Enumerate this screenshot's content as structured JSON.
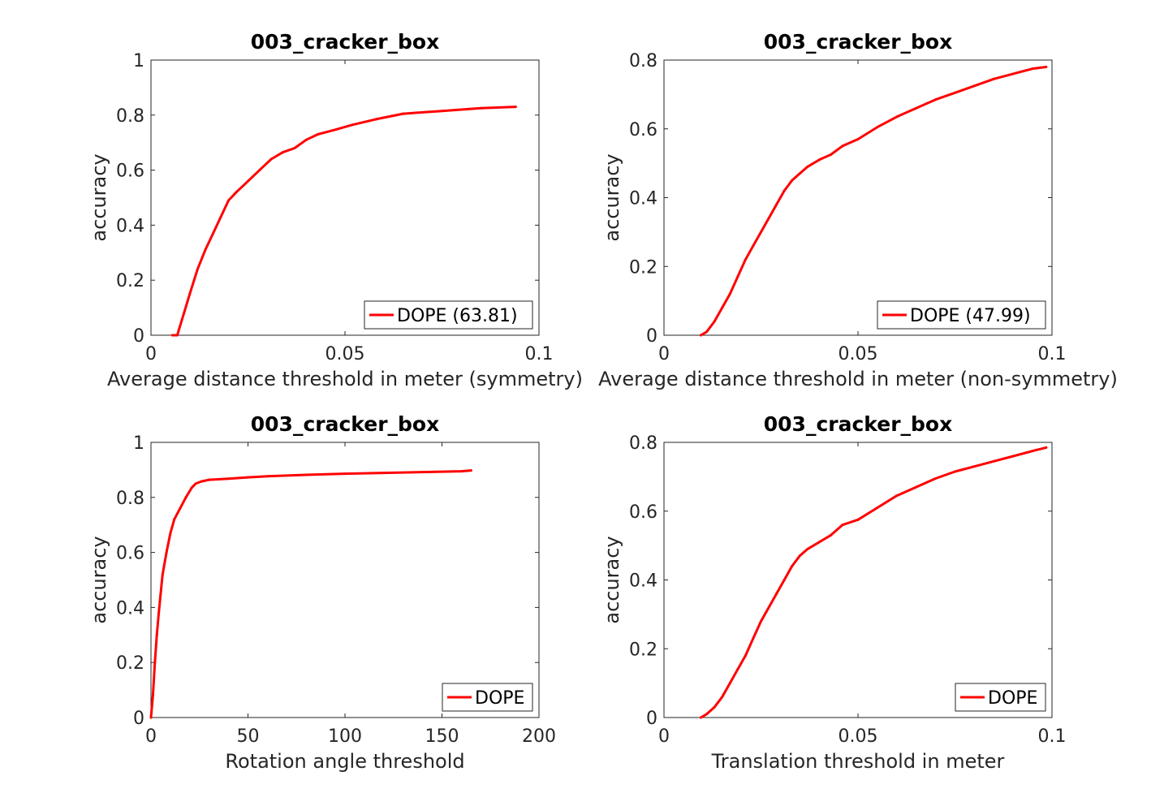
{
  "chart_data": [
    {
      "type": "line",
      "title": "003_cracker_box",
      "xlabel": "Average distance threshold in meter (symmetry)",
      "ylabel": "accuracy",
      "xlim": [
        0,
        0.1
      ],
      "ylim": [
        0,
        1
      ],
      "xticks": [
        "0",
        "0.05",
        "0.1"
      ],
      "yticks": [
        "0",
        "0.2",
        "0.4",
        "0.6",
        "0.8",
        "1"
      ],
      "legend_position": "bottom-right",
      "grid": false,
      "series": [
        {
          "name": "DOPE (63.81)",
          "color": "#ff0000",
          "x": [
            0.0055,
            0.0068,
            0.0072,
            0.0085,
            0.01,
            0.012,
            0.014,
            0.016,
            0.018,
            0.02,
            0.022,
            0.025,
            0.028,
            0.031,
            0.034,
            0.037,
            0.04,
            0.043,
            0.047,
            0.052,
            0.058,
            0.065,
            0.075,
            0.085,
            0.094
          ],
          "y": [
            0.0,
            0.0,
            0.02,
            0.08,
            0.15,
            0.24,
            0.31,
            0.37,
            0.43,
            0.49,
            0.52,
            0.56,
            0.6,
            0.64,
            0.665,
            0.68,
            0.71,
            0.73,
            0.745,
            0.765,
            0.785,
            0.805,
            0.815,
            0.825,
            0.83
          ]
        }
      ]
    },
    {
      "type": "line",
      "title": "003_cracker_box",
      "xlabel": "Average distance threshold in meter (non-symmetry)",
      "ylabel": "accuracy",
      "xlim": [
        0,
        0.1
      ],
      "ylim": [
        0,
        0.8
      ],
      "xticks": [
        "0",
        "0.05",
        "0.1"
      ],
      "yticks": [
        "0",
        "0.2",
        "0.4",
        "0.6",
        "0.8"
      ],
      "legend_position": "bottom-right",
      "grid": false,
      "series": [
        {
          "name": "DOPE (47.99)",
          "color": "#ff0000",
          "x": [
            0.0095,
            0.011,
            0.013,
            0.015,
            0.017,
            0.019,
            0.021,
            0.023,
            0.025,
            0.027,
            0.029,
            0.031,
            0.033,
            0.035,
            0.037,
            0.04,
            0.043,
            0.046,
            0.05,
            0.055,
            0.06,
            0.065,
            0.07,
            0.075,
            0.08,
            0.085,
            0.09,
            0.095,
            0.0985
          ],
          "y": [
            0.0,
            0.01,
            0.04,
            0.08,
            0.12,
            0.17,
            0.22,
            0.26,
            0.3,
            0.34,
            0.38,
            0.42,
            0.45,
            0.47,
            0.49,
            0.51,
            0.525,
            0.55,
            0.57,
            0.605,
            0.635,
            0.66,
            0.685,
            0.705,
            0.725,
            0.745,
            0.76,
            0.775,
            0.78
          ]
        }
      ]
    },
    {
      "type": "line",
      "title": "003_cracker_box",
      "xlabel": "Rotation angle threshold",
      "ylabel": "accuracy",
      "xlim": [
        0,
        200
      ],
      "ylim": [
        0,
        1
      ],
      "xticks": [
        "0",
        "50",
        "100",
        "150",
        "200"
      ],
      "yticks": [
        "0",
        "0.2",
        "0.4",
        "0.6",
        "0.8",
        "1"
      ],
      "legend_position": "bottom-right",
      "grid": false,
      "series": [
        {
          "name": "DOPE",
          "color": "#ff0000",
          "x": [
            0,
            1,
            2,
            3,
            4,
            5,
            6,
            8,
            10,
            12,
            15,
            18,
            21,
            23,
            26,
            30,
            40,
            50,
            60,
            80,
            100,
            120,
            140,
            160,
            165
          ],
          "y": [
            0.0,
            0.08,
            0.2,
            0.3,
            0.38,
            0.45,
            0.52,
            0.6,
            0.67,
            0.72,
            0.76,
            0.8,
            0.835,
            0.85,
            0.858,
            0.864,
            0.868,
            0.873,
            0.877,
            0.882,
            0.886,
            0.889,
            0.892,
            0.895,
            0.898
          ]
        }
      ]
    },
    {
      "type": "line",
      "title": "003_cracker_box",
      "xlabel": "Translation threshold in meter",
      "ylabel": "accuracy",
      "xlim": [
        0,
        0.1
      ],
      "ylim": [
        0,
        0.8
      ],
      "xticks": [
        "0",
        "0.05",
        "0.1"
      ],
      "yticks": [
        "0",
        "0.2",
        "0.4",
        "0.6",
        "0.8"
      ],
      "legend_position": "bottom-right",
      "grid": false,
      "series": [
        {
          "name": "DOPE",
          "color": "#ff0000",
          "x": [
            0.0095,
            0.011,
            0.013,
            0.015,
            0.017,
            0.019,
            0.021,
            0.023,
            0.025,
            0.027,
            0.029,
            0.031,
            0.033,
            0.035,
            0.037,
            0.04,
            0.043,
            0.046,
            0.05,
            0.055,
            0.06,
            0.065,
            0.07,
            0.075,
            0.08,
            0.085,
            0.09,
            0.095,
            0.0985
          ],
          "y": [
            0.0,
            0.01,
            0.03,
            0.06,
            0.1,
            0.14,
            0.18,
            0.23,
            0.28,
            0.32,
            0.36,
            0.4,
            0.44,
            0.47,
            0.49,
            0.51,
            0.53,
            0.56,
            0.575,
            0.61,
            0.645,
            0.67,
            0.695,
            0.715,
            0.73,
            0.745,
            0.76,
            0.775,
            0.785
          ]
        }
      ]
    }
  ]
}
